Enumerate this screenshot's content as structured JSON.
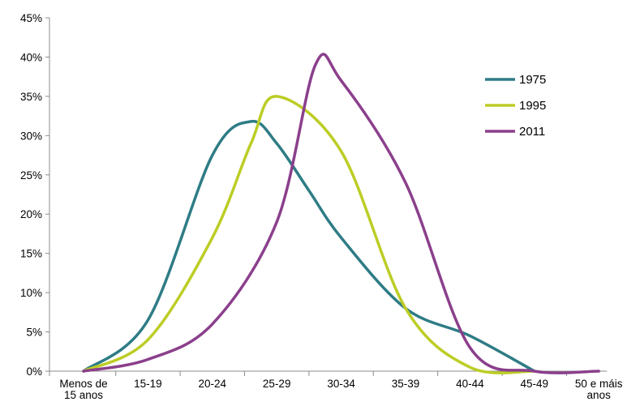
{
  "chart_data": {
    "type": "line",
    "title": "",
    "xlabel": "",
    "ylabel": "",
    "categories": [
      "Menos de 15 anos",
      "15-19",
      "20-24",
      "25-29",
      "30-34",
      "35-39",
      "40-44",
      "45-49",
      "50 e máis anos"
    ],
    "category_labels": [
      [
        "Menos de",
        "15 anos"
      ],
      [
        "15-19"
      ],
      [
        "20-24"
      ],
      [
        "25-29"
      ],
      [
        "30-34"
      ],
      [
        "35-39"
      ],
      [
        "40-44"
      ],
      [
        "45-49"
      ],
      [
        "50 e máis",
        "anos"
      ]
    ],
    "ylim": [
      0,
      45
    ],
    "y_ticks": [
      0,
      5,
      10,
      15,
      20,
      25,
      30,
      35,
      40,
      45
    ],
    "y_tick_labels": [
      "0%",
      "5%",
      "10%",
      "15%",
      "20%",
      "25%",
      "30%",
      "35%",
      "40%",
      "45%"
    ],
    "smooth": true,
    "grid": false,
    "legend_position": "top-right",
    "series": [
      {
        "name": "1975",
        "color": "#2e7c85",
        "x": [
          0,
          1,
          2,
          2.6,
          3,
          3.5,
          4,
          5,
          6,
          7
        ],
        "values": [
          0,
          6.5,
          27.5,
          31.8,
          29,
          23,
          17,
          8,
          4.5,
          0
        ]
      },
      {
        "name": "1995",
        "color": "#bccd25",
        "x": [
          0,
          1,
          2,
          2.6,
          3,
          4,
          5,
          6,
          7
        ],
        "values": [
          0,
          4,
          17,
          29,
          35,
          28,
          8,
          0.5,
          0
        ]
      },
      {
        "name": "2011",
        "color": "#8b3f8c",
        "x": [
          0,
          1,
          2,
          3,
          3.6,
          4,
          5,
          6,
          7,
          8
        ],
        "values": [
          0,
          1.5,
          6,
          19,
          39,
          37,
          24,
          3,
          0,
          0
        ]
      }
    ]
  }
}
